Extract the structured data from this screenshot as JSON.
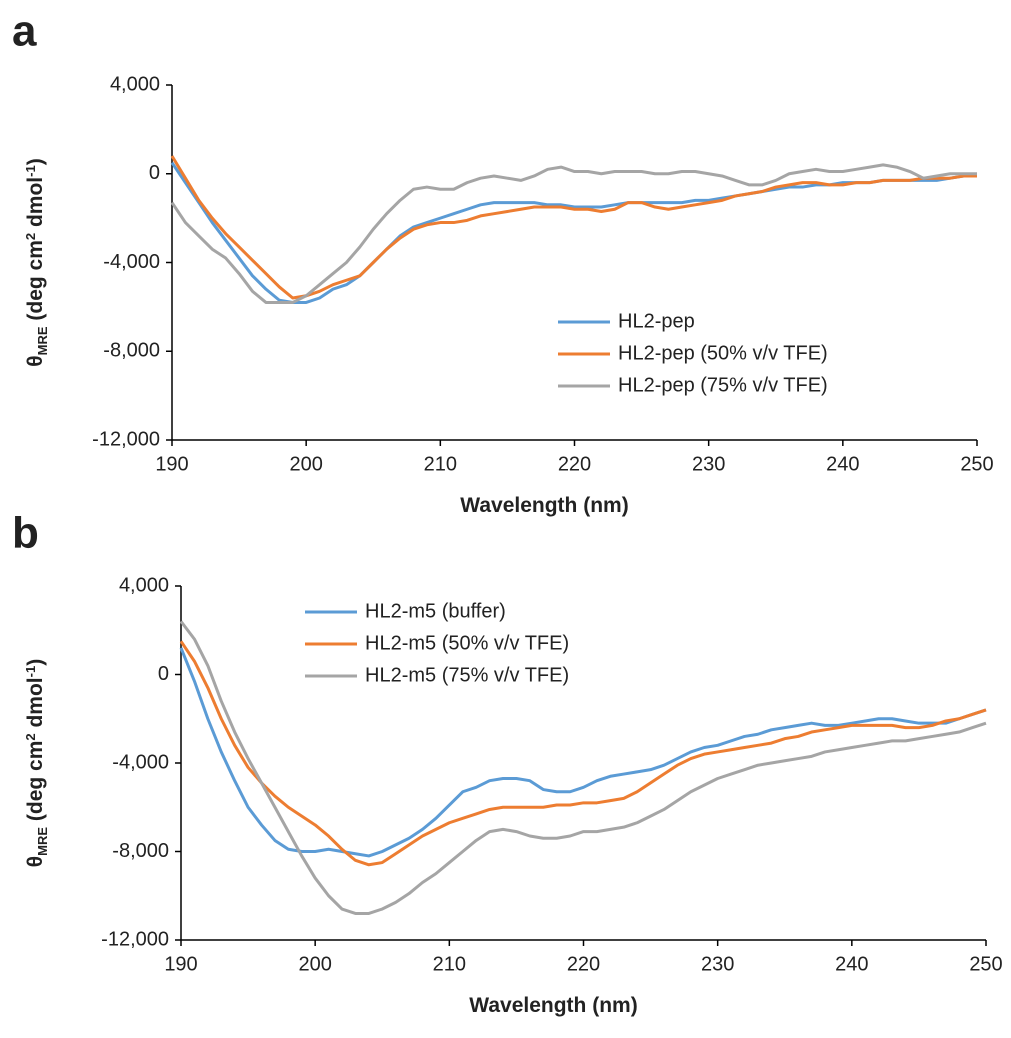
{
  "chart_data": [
    {
      "type": "line",
      "panel_label": "a",
      "ylabel": [
        "θ",
        "MRE",
        " (deg cm",
        "2",
        " dmol",
        "-1",
        ")"
      ],
      "xlabel": "Wavelength (nm)",
      "xlim": [
        190,
        250
      ],
      "xticks": [
        190,
        200,
        210,
        220,
        230,
        240,
        250
      ],
      "ylim": [
        -12000,
        4000
      ],
      "yticks": [
        {
          "value": -12000,
          "label": "-12,000"
        },
        {
          "value": -8000,
          "label": "-8,000"
        },
        {
          "value": -4000,
          "label": "-4,000"
        },
        0,
        {
          "value": 4000,
          "label": "4,000"
        }
      ],
      "legend": "lower right",
      "x": [
        190,
        191,
        192,
        193,
        194,
        195,
        196,
        197,
        198,
        199,
        200,
        201,
        202,
        203,
        204,
        205,
        206,
        207,
        208,
        209,
        210,
        211,
        212,
        213,
        214,
        215,
        216,
        217,
        218,
        219,
        220,
        221,
        222,
        223,
        224,
        225,
        226,
        227,
        228,
        229,
        230,
        231,
        232,
        233,
        234,
        235,
        236,
        237,
        238,
        239,
        240,
        241,
        242,
        243,
        244,
        245,
        246,
        247,
        248,
        249,
        250
      ],
      "series": [
        {
          "name": "HL2-pep",
          "color": "#5b9bd5",
          "values": [
            500,
            -400,
            -1300,
            -2200,
            -3000,
            -3800,
            -4600,
            -5200,
            -5700,
            -5800,
            -5800,
            -5600,
            -5200,
            -5000,
            -4600,
            -4000,
            -3400,
            -2800,
            -2400,
            -2200,
            -2000,
            -1800,
            -1600,
            -1400,
            -1300,
            -1300,
            -1300,
            -1300,
            -1400,
            -1400,
            -1500,
            -1500,
            -1500,
            -1400,
            -1300,
            -1300,
            -1300,
            -1300,
            -1300,
            -1200,
            -1200,
            -1100,
            -1000,
            -900,
            -800,
            -700,
            -600,
            -600,
            -500,
            -500,
            -400,
            -400,
            -400,
            -300,
            -300,
            -300,
            -300,
            -300,
            -200,
            -100,
            -100
          ]
        },
        {
          "name": "HL2-pep (50% v/v TFE)",
          "color": "#ed7d31",
          "values": [
            800,
            -200,
            -1200,
            -2000,
            -2700,
            -3300,
            -3900,
            -4500,
            -5100,
            -5600,
            -5500,
            -5300,
            -5000,
            -4800,
            -4600,
            -4000,
            -3400,
            -2900,
            -2500,
            -2300,
            -2200,
            -2200,
            -2100,
            -1900,
            -1800,
            -1700,
            -1600,
            -1500,
            -1500,
            -1500,
            -1600,
            -1600,
            -1700,
            -1600,
            -1300,
            -1300,
            -1500,
            -1600,
            -1500,
            -1400,
            -1300,
            -1200,
            -1000,
            -900,
            -800,
            -600,
            -500,
            -400,
            -400,
            -500,
            -500,
            -400,
            -400,
            -300,
            -300,
            -300,
            -200,
            -200,
            -200,
            -100,
            -100
          ]
        },
        {
          "name": "HL2-pep (75% v/v TFE)",
          "color": "#a5a5a5",
          "values": [
            -1300,
            -2200,
            -2800,
            -3400,
            -3800,
            -4500,
            -5300,
            -5800,
            -5800,
            -5800,
            -5500,
            -5000,
            -4500,
            -4000,
            -3300,
            -2500,
            -1800,
            -1200,
            -700,
            -600,
            -700,
            -700,
            -400,
            -200,
            -100,
            -200,
            -300,
            -100,
            200,
            300,
            100,
            100,
            0,
            100,
            100,
            100,
            0,
            0,
            100,
            100,
            0,
            -100,
            -300,
            -500,
            -500,
            -300,
            0,
            100,
            200,
            100,
            100,
            200,
            300,
            400,
            300,
            100,
            -200,
            -100,
            0,
            0,
            0
          ]
        }
      ]
    },
    {
      "type": "line",
      "panel_label": "b",
      "ylabel": [
        "θ",
        "MRE",
        " (deg cm",
        "2",
        " dmol",
        "-1",
        ")"
      ],
      "xlabel": "Wavelength (nm)",
      "xlim": [
        190,
        250
      ],
      "xticks": [
        190,
        200,
        210,
        220,
        230,
        240,
        250
      ],
      "ylim": [
        -12000,
        4000
      ],
      "yticks": [
        {
          "value": -12000,
          "label": "-12,000"
        },
        {
          "value": -8000,
          "label": "-8,000"
        },
        {
          "value": -4000,
          "label": "-4,000"
        },
        0,
        {
          "value": 4000,
          "label": "4,000"
        }
      ],
      "legend": "upper left",
      "x": [
        190,
        191,
        192,
        193,
        194,
        195,
        196,
        197,
        198,
        199,
        200,
        201,
        202,
        203,
        204,
        205,
        206,
        207,
        208,
        209,
        210,
        211,
        212,
        213,
        214,
        215,
        216,
        217,
        218,
        219,
        220,
        221,
        222,
        223,
        224,
        225,
        226,
        227,
        228,
        229,
        230,
        231,
        232,
        233,
        234,
        235,
        236,
        237,
        238,
        239,
        240,
        241,
        242,
        243,
        244,
        245,
        246,
        247,
        248,
        249,
        250
      ],
      "series": [
        {
          "name": "HL2-m5 (buffer)",
          "color": "#5b9bd5",
          "values": [
            1200,
            -300,
            -2000,
            -3500,
            -4800,
            -6000,
            -6800,
            -7500,
            -7900,
            -8000,
            -8000,
            -7900,
            -8000,
            -8100,
            -8200,
            -8000,
            -7700,
            -7400,
            -7000,
            -6500,
            -5900,
            -5300,
            -5100,
            -4800,
            -4700,
            -4700,
            -4800,
            -5200,
            -5300,
            -5300,
            -5100,
            -4800,
            -4600,
            -4500,
            -4400,
            -4300,
            -4100,
            -3800,
            -3500,
            -3300,
            -3200,
            -3000,
            -2800,
            -2700,
            -2500,
            -2400,
            -2300,
            -2200,
            -2300,
            -2300,
            -2200,
            -2100,
            -2000,
            -2000,
            -2100,
            -2200,
            -2200,
            -2200,
            -2000,
            -1800,
            -1600
          ]
        },
        {
          "name": "HL2-m5 (50% v/v TFE)",
          "color": "#ed7d31",
          "values": [
            1500,
            600,
            -600,
            -2000,
            -3200,
            -4200,
            -4900,
            -5500,
            -6000,
            -6400,
            -6800,
            -7300,
            -7900,
            -8400,
            -8600,
            -8500,
            -8100,
            -7700,
            -7300,
            -7000,
            -6700,
            -6500,
            -6300,
            -6100,
            -6000,
            -6000,
            -6000,
            -6000,
            -5900,
            -5900,
            -5800,
            -5800,
            -5700,
            -5600,
            -5300,
            -4900,
            -4500,
            -4100,
            -3800,
            -3600,
            -3500,
            -3400,
            -3300,
            -3200,
            -3100,
            -2900,
            -2800,
            -2600,
            -2500,
            -2400,
            -2300,
            -2300,
            -2300,
            -2300,
            -2400,
            -2400,
            -2300,
            -2100,
            -2000,
            -1800,
            -1600
          ]
        },
        {
          "name": "HL2-m5 (75% v/v TFE)",
          "color": "#a5a5a5",
          "values": [
            2400,
            1600,
            400,
            -1200,
            -2600,
            -3800,
            -4900,
            -6000,
            -7100,
            -8200,
            -9200,
            -10000,
            -10600,
            -10800,
            -10800,
            -10600,
            -10300,
            -9900,
            -9400,
            -9000,
            -8500,
            -8000,
            -7500,
            -7100,
            -7000,
            -7100,
            -7300,
            -7400,
            -7400,
            -7300,
            -7100,
            -7100,
            -7000,
            -6900,
            -6700,
            -6400,
            -6100,
            -5700,
            -5300,
            -5000,
            -4700,
            -4500,
            -4300,
            -4100,
            -4000,
            -3900,
            -3800,
            -3700,
            -3500,
            -3400,
            -3300,
            -3200,
            -3100,
            -3000,
            -3000,
            -2900,
            -2800,
            -2700,
            -2600,
            -2400,
            -2200
          ]
        }
      ]
    }
  ]
}
